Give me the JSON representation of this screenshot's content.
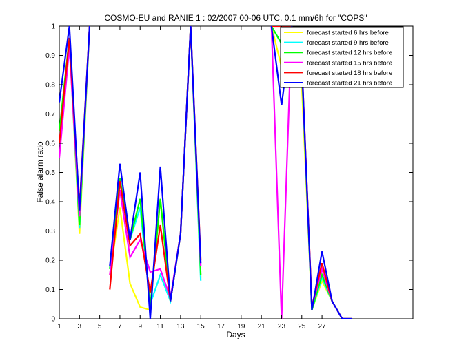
{
  "chart_data": {
    "type": "line",
    "title": "COSMO-EU and RANIE 1 : 02/2007 00-06 UTC, 0.1 mm/6h for \"COPS\"",
    "xlabel": "Days",
    "ylabel": "False alarm ratio",
    "xlim": [
      1,
      36
    ],
    "ylim": [
      0,
      1
    ],
    "xticks": [
      1,
      3,
      5,
      7,
      9,
      11,
      13,
      15,
      17,
      19,
      21,
      23,
      25,
      27
    ],
    "yticks": [
      0,
      0.1,
      0.2,
      0.3,
      0.4,
      0.5,
      0.6,
      0.7,
      0.8,
      0.9,
      1
    ],
    "ytick_labels": [
      "0",
      "0.1",
      "0.2",
      "0.3",
      "0.4",
      "0.5",
      "0.6",
      "0.7",
      "0.8",
      "0.9",
      "1"
    ],
    "grid": false,
    "legend_position": "top-right",
    "x": [
      1,
      2,
      3,
      4,
      5,
      6,
      7,
      8,
      9,
      10,
      11,
      12,
      13,
      14,
      15,
      16,
      17,
      18,
      19,
      20,
      21,
      22,
      23,
      24,
      25,
      26,
      27,
      28,
      29,
      30
    ],
    "series": [
      {
        "name": "forecast started 6 hrs before",
        "color": "#ffff00",
        "values": [
          0.6,
          0.95,
          0.29,
          1.0,
          null,
          0.15,
          0.38,
          0.12,
          0.04,
          0.03,
          0.41,
          0.06,
          0.29,
          1.0,
          0.14,
          null,
          null,
          null,
          null,
          null,
          null,
          1.0,
          0.86,
          1.0,
          0.8,
          0.03,
          0.13,
          0.06,
          0.0,
          0.0
        ]
      },
      {
        "name": "forecast started 9 hrs before",
        "color": "#00ffff",
        "values": [
          0.62,
          0.95,
          0.31,
          1.0,
          null,
          0.17,
          0.47,
          0.27,
          0.38,
          0.05,
          0.15,
          0.06,
          0.29,
          1.0,
          0.13,
          null,
          null,
          null,
          null,
          null,
          null,
          1.0,
          0.94,
          1.0,
          0.85,
          0.03,
          0.14,
          0.06,
          0.0,
          0.0
        ]
      },
      {
        "name": "forecast started 12 hrs before",
        "color": "#00ff00",
        "values": [
          0.64,
          0.96,
          0.32,
          1.0,
          null,
          0.17,
          0.48,
          0.27,
          0.41,
          0.04,
          0.41,
          0.06,
          0.29,
          1.0,
          0.15,
          null,
          null,
          null,
          null,
          null,
          null,
          1.0,
          0.94,
          1.0,
          0.86,
          0.03,
          0.15,
          0.06,
          0.0,
          0.0
        ]
      },
      {
        "name": "forecast started 15 hrs before",
        "color": "#ff00ff",
        "values": [
          0.55,
          0.93,
          0.35,
          1.0,
          null,
          0.15,
          0.44,
          0.21,
          0.27,
          0.16,
          0.17,
          0.07,
          0.29,
          1.0,
          0.18,
          null,
          null,
          null,
          null,
          null,
          null,
          1.0,
          0.0,
          1.0,
          0.87,
          0.04,
          0.17,
          0.06,
          0.0,
          0.0
        ]
      },
      {
        "name": "forecast started 18 hrs before",
        "color": "#ff0000",
        "values": [
          0.6,
          0.96,
          0.38,
          1.0,
          null,
          0.1,
          0.47,
          0.25,
          0.29,
          0.09,
          0.32,
          0.06,
          0.29,
          1.0,
          0.2,
          null,
          null,
          null,
          null,
          null,
          null,
          1.0,
          1.0,
          1.0,
          0.88,
          0.04,
          0.19,
          0.06,
          0.0,
          0.0
        ]
      },
      {
        "name": "forecast started 21 hrs before",
        "color": "#0000ff",
        "values": [
          0.74,
          1.0,
          0.37,
          1.0,
          null,
          0.18,
          0.53,
          0.27,
          0.5,
          0.0,
          0.52,
          0.06,
          0.29,
          1.0,
          0.19,
          null,
          null,
          null,
          null,
          null,
          null,
          1.0,
          0.73,
          1.0,
          0.88,
          0.03,
          0.23,
          0.06,
          0.0,
          0.0
        ]
      }
    ]
  }
}
